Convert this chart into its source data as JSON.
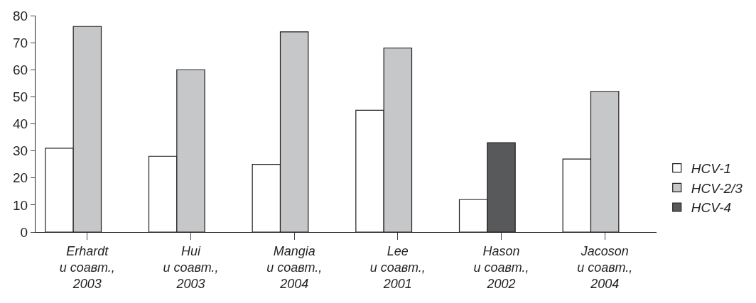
{
  "chart_data": {
    "type": "bar",
    "categories": [
      "Erhardt\nи соавт.,\n2003",
      "Hui\nи соавт.,\n2003",
      "Mangia\nи соавт.,\n2004",
      "Lee\nи соавт.,\n2001",
      "Hason\nи соавт.,\n2002",
      "Jacoson\nи соавт.,\n2004"
    ],
    "series": [
      {
        "name": "HCV-1",
        "color": "#ffffff",
        "values": [
          31,
          28,
          25,
          45,
          12,
          27
        ]
      },
      {
        "name": "HCV-2/3",
        "color": "#c6c7c9",
        "values": [
          76,
          60,
          74,
          68,
          null,
          52
        ]
      },
      {
        "name": "HCV-4",
        "color": "#58595b",
        "values": [
          null,
          null,
          null,
          null,
          33,
          null
        ]
      }
    ],
    "ylim": [
      0,
      80
    ],
    "yticks": [
      0,
      10,
      20,
      30,
      40,
      50,
      60,
      70,
      80
    ],
    "legend": "bottom right"
  }
}
